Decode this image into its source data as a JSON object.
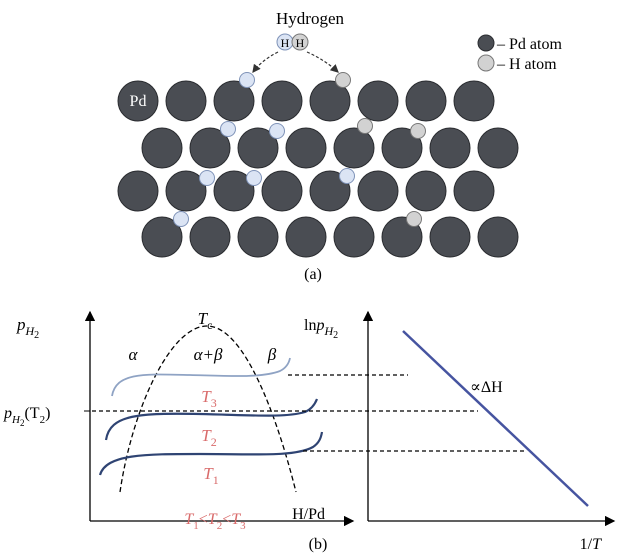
{
  "panel_a": {
    "hydrogen_label": "Hydrogen",
    "h_letter": "H",
    "pd_label": "Pd",
    "legend": {
      "pd": "– Pd atom",
      "h": "– H atom"
    },
    "caption": "(a)"
  },
  "panel_b": {
    "caption": "(b)",
    "left": {
      "y_axis": {
        "p": "p",
        "sub": "H",
        "sub2": "2"
      },
      "y_tick": {
        "p": "p",
        "sub": "H",
        "sub2": "2",
        "arg": "(T",
        "arg_sub": "2",
        "close": ")"
      },
      "x_axis": "H/Pd",
      "tc": {
        "t": "T",
        "sub": "c"
      },
      "alpha": "α",
      "alpha_beta": "α+β",
      "beta": "β",
      "isotherms": [
        {
          "t": "T",
          "sub": "3"
        },
        {
          "t": "T",
          "sub": "2"
        },
        {
          "t": "T",
          "sub": "1"
        }
      ],
      "relation": {
        "t1": "T",
        "s1": "1",
        "lt1": "<",
        "t2": "T",
        "s2": "2",
        "lt2": "<",
        "t3": "T",
        "s3": "3"
      }
    },
    "right": {
      "y_axis": {
        "ln": "ln",
        "p": "p",
        "sub": "H",
        "sub2": "2"
      },
      "x_axis": {
        "one": "1/",
        "t": "T"
      },
      "slope_label": "∝ΔH"
    }
  },
  "colors": {
    "pd_atom": "#4a4d53",
    "h_atom_adsorbed": "#dbe4f4",
    "h_atom_legend": "#d2d2d2",
    "isotherm_t3": "#8fa3c4",
    "isotherm_t1_t2": "#2f4473",
    "vanthoff_line": "#4654a0",
    "temperature_text": "#d96b6b"
  }
}
